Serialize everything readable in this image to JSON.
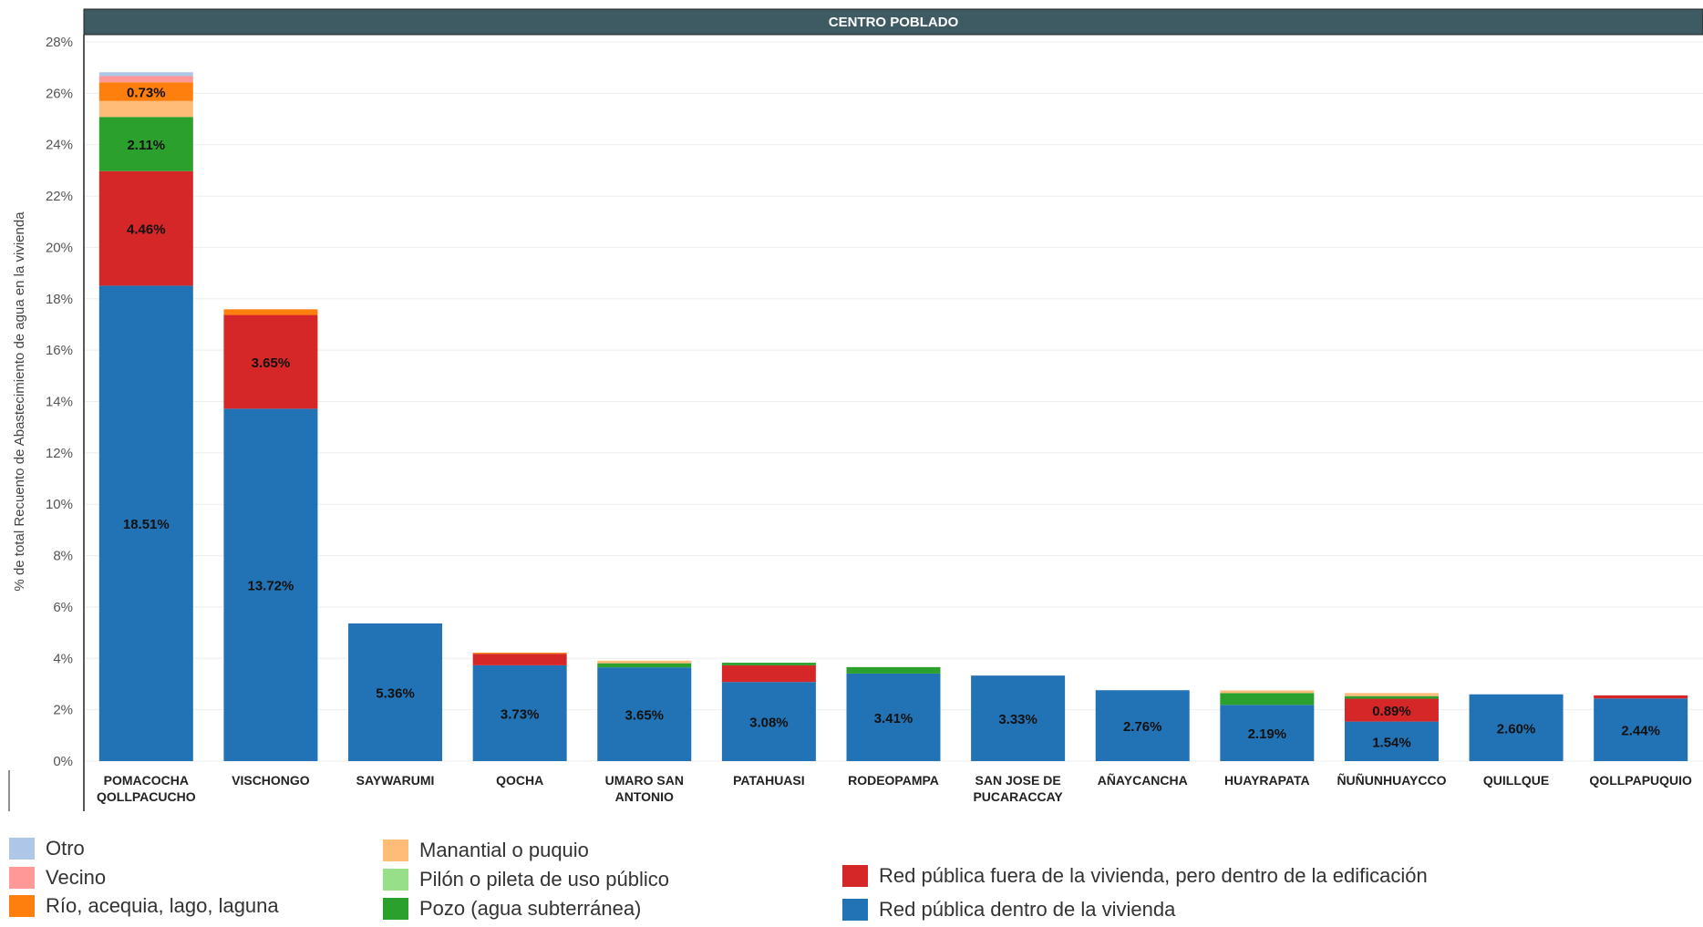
{
  "chart_data": {
    "type": "bar",
    "stacked": true,
    "title": "CENTRO POBLADO",
    "ylabel": "% de total Recuento de Abastecimiento de agua en la vivienda",
    "xlabel": "",
    "ylim": [
      0,
      28
    ],
    "yticks": [
      "0%",
      "2%",
      "4%",
      "6%",
      "8%",
      "10%",
      "12%",
      "14%",
      "16%",
      "18%",
      "20%",
      "22%",
      "24%",
      "26%",
      "28%"
    ],
    "grid": true,
    "legend_position": "bottom",
    "categories": [
      [
        "POMACOCHA",
        "QOLLPACUCHO"
      ],
      [
        "VISCHONGO"
      ],
      [
        "SAYWARUMI"
      ],
      [
        "QOCHA"
      ],
      [
        "UMARO SAN",
        "ANTONIO"
      ],
      [
        "PATAHUASI"
      ],
      [
        "RODEOPAMPA"
      ],
      [
        "SAN JOSE DE",
        "PUCARACCAY"
      ],
      [
        "AÑAYCANCHA"
      ],
      [
        "HUAYRAPATA"
      ],
      [
        "ÑUÑUNHUAYCCO"
      ],
      [
        "QUILLQUE"
      ],
      [
        "QOLLPAPUQUIO"
      ]
    ],
    "series": [
      {
        "name": "Red pública dentro de la vivienda",
        "color": "#2273b5",
        "values": [
          18.51,
          13.72,
          5.36,
          3.73,
          3.65,
          3.08,
          3.41,
          3.33,
          2.76,
          2.19,
          1.54,
          2.6,
          2.44
        ],
        "labels": [
          "18.51%",
          "13.72%",
          "5.36%",
          "3.73%",
          "3.65%",
          "3.08%",
          "3.41%",
          "3.33%",
          "2.76%",
          "2.19%",
          "1.54%",
          "2.60%",
          "2.44%"
        ]
      },
      {
        "name": "Red pública fuera de la vivienda, pero dentro de la edificación",
        "color": "#d62728",
        "values": [
          4.46,
          3.65,
          0,
          0.45,
          0,
          0.65,
          0,
          0,
          0,
          0,
          0.89,
          0,
          0.12
        ],
        "labels": [
          "4.46%",
          "3.65%",
          "",
          "",
          "",
          "",
          "",
          "",
          "",
          "",
          "0.89%",
          "",
          ""
        ]
      },
      {
        "name": "Pozo (agua subterránea)",
        "color": "#2ca02c",
        "values": [
          2.11,
          0,
          0,
          0,
          0.16,
          0.1,
          0.25,
          0,
          0,
          0.46,
          0.1,
          0,
          0
        ],
        "labels": [
          "2.11%",
          "",
          "",
          "",
          "",
          "",
          "",
          "",
          "",
          "",
          "",
          "",
          ""
        ]
      },
      {
        "name": "Pilón o pileta de uso público",
        "color": "#98df8a",
        "values": [
          0,
          0,
          0,
          0,
          0,
          0,
          0,
          0,
          0,
          0,
          0,
          0,
          0
        ],
        "labels": [
          "",
          "",
          "",
          "",
          "",
          "",
          "",
          "",
          "",
          "",
          "",
          "",
          ""
        ]
      },
      {
        "name": "Manantial o puquio",
        "color": "#ffbb78",
        "values": [
          0.62,
          0,
          0,
          0,
          0.1,
          0,
          0,
          0,
          0,
          0.1,
          0.12,
          0,
          0
        ],
        "labels": [
          "",
          "",
          "",
          "",
          "",
          "",
          "",
          "",
          "",
          "",
          "",
          "",
          ""
        ]
      },
      {
        "name": "Río, acequia, lago, laguna",
        "color": "#ff7f0e",
        "values": [
          0.73,
          0.22,
          0,
          0.04,
          0,
          0,
          0,
          0,
          0,
          0,
          0,
          0,
          0
        ],
        "labels": [
          "0.73%",
          "",
          "",
          "",
          "",
          "",
          "",
          "",
          "",
          "",
          "",
          "",
          ""
        ]
      },
      {
        "name": "Vecino",
        "color": "#ff9896",
        "values": [
          0.24,
          0,
          0,
          0,
          0,
          0,
          0,
          0,
          0,
          0,
          0,
          0,
          0
        ],
        "labels": [
          "",
          "",
          "",
          "",
          "",
          "",
          "",
          "",
          "",
          "",
          "",
          "",
          ""
        ]
      },
      {
        "name": "Otro",
        "color": "#aec7e8",
        "values": [
          0.15,
          0,
          0,
          0,
          0,
          0,
          0,
          0,
          0,
          0,
          0,
          0,
          0
        ],
        "labels": [
          "",
          "",
          "",
          "",
          "",
          "",
          "",
          "",
          "",
          "",
          "",
          "",
          ""
        ]
      }
    ]
  },
  "legend": {
    "items": [
      {
        "label": "Otro",
        "color": "#aec7e8"
      },
      {
        "label": "Vecino",
        "color": "#ff9896"
      },
      {
        "label": "Río, acequia, lago, laguna",
        "color": "#ff7f0e"
      },
      {
        "label": "Manantial o puquio",
        "color": "#ffbb78"
      },
      {
        "label": "Pilón o pileta de uso público",
        "color": "#98df8a"
      },
      {
        "label": "Pozo (agua subterránea)",
        "color": "#2ca02c"
      },
      {
        "label": "Red pública fuera de la vivienda, pero dentro de la edificación",
        "color": "#d62728"
      },
      {
        "label": "Red pública dentro de la vivienda",
        "color": "#2273b5"
      }
    ]
  },
  "colors": {
    "header_bg": "#3e5a63",
    "grid": "#eeeeee",
    "axis_text": "#555555"
  }
}
